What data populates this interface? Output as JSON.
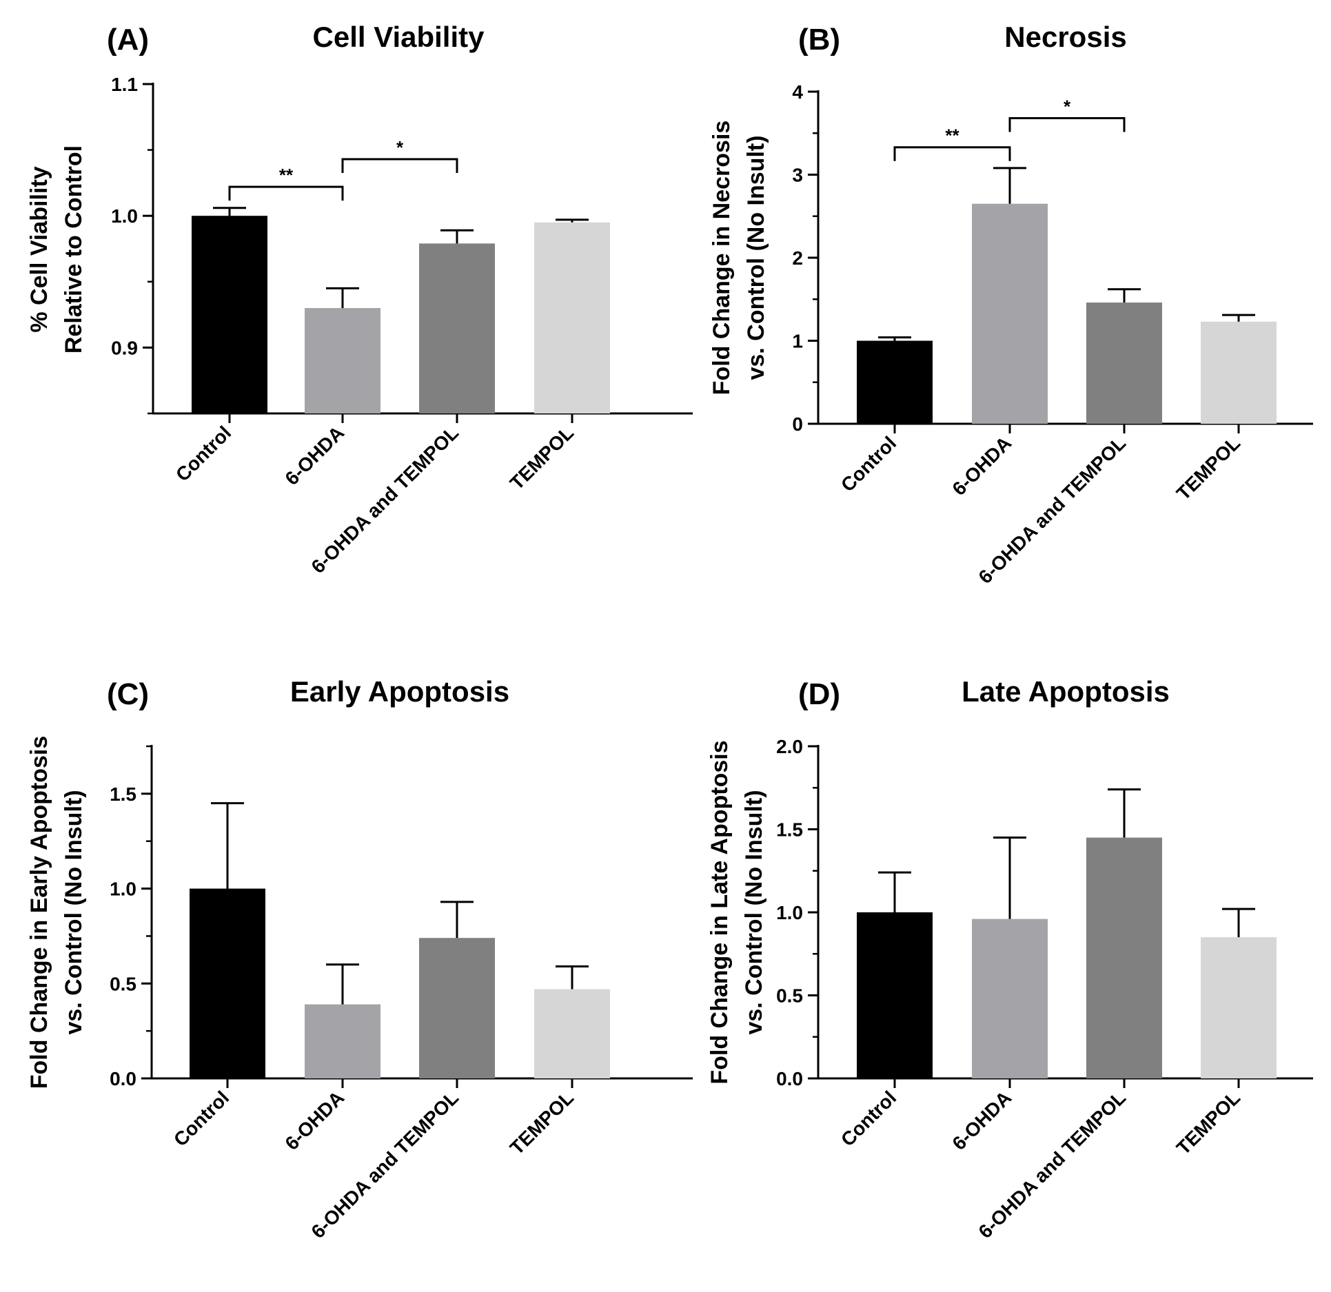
{
  "figure": {
    "categories": [
      "Control",
      "6-OHDA",
      "6-OHDA and TEMPOL",
      "TEMPOL"
    ],
    "bar_colors": [
      "#000000",
      "#a4a3a8",
      "#808080",
      "#d6d6d6"
    ]
  },
  "chart_data": [
    {
      "type": "bar",
      "panel": "(A)",
      "title": "Cell Viability",
      "ylabel_lines": [
        "% Cell Viability",
        "Relative to Control"
      ],
      "categories": [
        "Control",
        "6-OHDA",
        "6-OHDA and TEMPOL",
        "TEMPOL"
      ],
      "values": [
        1.0,
        0.93,
        0.979,
        0.995
      ],
      "errors": [
        0.006,
        0.015,
        0.01,
        0.002
      ],
      "ylim": [
        0.85,
        1.1
      ],
      "yticks": [
        0.9,
        1.0,
        1.1
      ],
      "ytick_labels": [
        "0.9",
        "1.0",
        "1.1"
      ],
      "minor_step": 0.05,
      "significance": [
        {
          "from": 0,
          "to": 1,
          "label": "**",
          "y": 1.022
        },
        {
          "from": 1,
          "to": 2,
          "label": "*",
          "y": 1.043
        }
      ]
    },
    {
      "type": "bar",
      "panel": "(B)",
      "title": "Necrosis",
      "ylabel_lines": [
        "Fold Change in Necrosis",
        "vs. Control (No Insult)"
      ],
      "categories": [
        "Control",
        "6-OHDA",
        "6-OHDA and TEMPOL",
        "TEMPOL"
      ],
      "values": [
        1.0,
        2.65,
        1.46,
        1.23
      ],
      "errors": [
        0.04,
        0.43,
        0.16,
        0.08
      ],
      "ylim": [
        0,
        4
      ],
      "yticks": [
        0,
        1,
        2,
        3,
        4
      ],
      "ytick_labels": [
        "0",
        "1",
        "2",
        "3",
        "4"
      ],
      "minor_step": 0.5,
      "significance": [
        {
          "from": 0,
          "to": 1,
          "label": "**",
          "y": 3.33
        },
        {
          "from": 1,
          "to": 2,
          "label": "*",
          "y": 3.68
        }
      ]
    },
    {
      "type": "bar",
      "panel": "(C)",
      "title": "Early Apoptosis",
      "ylabel_lines": [
        "Fold Change in Early Apoptosis",
        "vs. Control (No Insult)"
      ],
      "categories": [
        "Control",
        "6-OHDA",
        "6-OHDA and TEMPOL",
        "TEMPOL"
      ],
      "values": [
        1.0,
        0.39,
        0.74,
        0.47
      ],
      "errors": [
        0.45,
        0.21,
        0.19,
        0.12
      ],
      "ylim": [
        0,
        1.75
      ],
      "yticks": [
        0.0,
        0.5,
        1.0,
        1.5
      ],
      "ytick_labels": [
        "0.0",
        "0.5",
        "1.0",
        "1.5"
      ],
      "minor_step": 0.25,
      "significance": []
    },
    {
      "type": "bar",
      "panel": "(D)",
      "title": "Late Apoptosis",
      "ylabel_lines": [
        "Fold Change in Late Apoptosis",
        "vs. Control (No Insult)"
      ],
      "categories": [
        "Control",
        "6-OHDA",
        "6-OHDA and TEMPOL",
        "TEMPOL"
      ],
      "values": [
        1.0,
        0.96,
        1.45,
        0.85
      ],
      "errors": [
        0.24,
        0.49,
        0.29,
        0.17
      ],
      "ylim": [
        0,
        2.0
      ],
      "yticks": [
        0.0,
        0.5,
        1.0,
        1.5,
        2.0
      ],
      "ytick_labels": [
        "0.0",
        "0.5",
        "1.0",
        "1.5",
        "2.0"
      ],
      "minor_step": 0.25,
      "significance": []
    }
  ]
}
